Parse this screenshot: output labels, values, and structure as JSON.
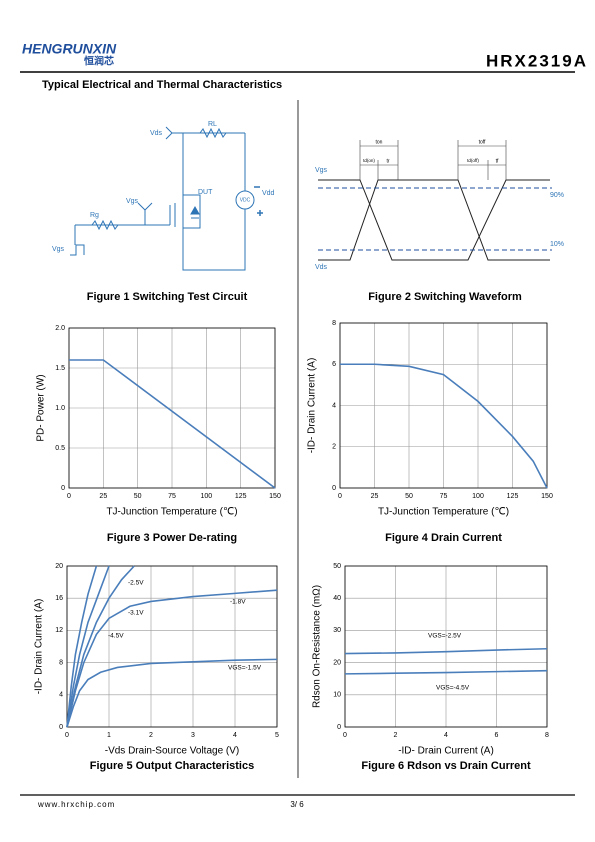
{
  "header": {
    "brand": "HENGRUNXIN",
    "brand_cn": "恒润芯",
    "part": "HRX2319A"
  },
  "section_title": "Typical Electrical and Thermal Characteristics",
  "figure1": {
    "title": "Figure 1 Switching Test Circuit",
    "labels": [
      "Vds",
      "RL",
      "Vdd",
      "DUT",
      "VDC",
      "Vgs",
      "Rg",
      "Vgs"
    ]
  },
  "figure2": {
    "title": "Figure 2 Switching Waveform",
    "labels": [
      "Vgs",
      "Vds",
      "90%",
      "10%",
      "ton",
      "td(on)",
      "tr",
      "toff",
      "td(off)",
      "tf"
    ]
  },
  "chart_data": [
    {
      "type": "line",
      "title": "Figure 3 Power De-rating",
      "x_label": "TJ-Junction Temperature (℃)",
      "y_label": "PD- Power (W)",
      "xlim": [
        0,
        150
      ],
      "xticks": [
        0,
        25,
        50,
        75,
        100,
        125,
        150
      ],
      "ylim": [
        0,
        2
      ],
      "yticks": [
        0,
        0.5,
        {
          "value": 1,
          "label": "1.0"
        },
        1.5,
        {
          "value": 2,
          "label": "2.0"
        }
      ],
      "grid": true,
      "series": [
        {
          "color": "#4a7ebb",
          "x": [
            0,
            25,
            150
          ],
          "values": [
            1.6,
            1.6,
            0
          ]
        }
      ]
    },
    {
      "type": "line",
      "title": "Figure 4 Drain Current",
      "x_label": "TJ-Junction Temperature (℃)",
      "y_label": "-ID- Drain Current (A)",
      "xlim": [
        0,
        150
      ],
      "xticks": [
        0,
        25,
        50,
        75,
        100,
        125,
        150
      ],
      "ylim": [
        0,
        8
      ],
      "yticks": [
        0,
        2,
        4,
        6,
        8
      ],
      "grid": true,
      "series": [
        {
          "color": "#4a7ebb",
          "x": [
            0,
            25,
            50,
            75,
            100,
            125,
            140,
            150
          ],
          "values": [
            6,
            6,
            5.9,
            5.5,
            4.2,
            2.5,
            1.3,
            0
          ]
        }
      ]
    },
    {
      "type": "line",
      "title": "Figure 5 Output Characteristics",
      "x_label": "-Vds Drain-Source Voltage (V)",
      "y_label": "-ID- Drain Current (A)",
      "xlim": [
        0,
        5
      ],
      "xticks": [
        0,
        1,
        2,
        3,
        4,
        5
      ],
      "ylim": [
        0,
        20
      ],
      "yticks": [
        0,
        4,
        8,
        12,
        16,
        20
      ],
      "grid": true,
      "series": [
        {
          "name": "-2.5V",
          "color": "#4a7ebb",
          "x": [
            0,
            0.2,
            0.4,
            0.7,
            1.0,
            1.3,
            1.6
          ],
          "values": [
            0,
            5,
            9,
            13,
            16,
            18.3,
            20
          ]
        },
        {
          "name": "-3.1V",
          "color": "#4a7ebb",
          "x": [
            0,
            0.15,
            0.3,
            0.5,
            0.75,
            1.0
          ],
          "values": [
            0,
            5,
            9,
            13,
            16.5,
            20
          ]
        },
        {
          "name": "-4.5V",
          "color": "#4a7ebb",
          "x": [
            0,
            0.1,
            0.2,
            0.35,
            0.5,
            0.7
          ],
          "values": [
            0,
            5,
            9,
            13,
            16.5,
            20
          ]
        },
        {
          "name": "-1.8V",
          "color": "#4a7ebb",
          "x": [
            0,
            0.2,
            0.4,
            0.7,
            1,
            1.5,
            2,
            3,
            4,
            5
          ],
          "values": [
            0,
            4.5,
            8,
            11.5,
            13.5,
            15,
            15.6,
            16.2,
            16.6,
            17
          ]
        },
        {
          "name": "VGS=-1.5V",
          "color": "#4a7ebb",
          "x": [
            0,
            0.15,
            0.3,
            0.5,
            0.8,
            1.2,
            2,
            3,
            4,
            5
          ],
          "values": [
            0,
            2.5,
            4.5,
            5.9,
            6.8,
            7.4,
            7.9,
            8.1,
            8.3,
            8.4
          ]
        }
      ]
    },
    {
      "type": "line",
      "title": "Figure 6 Rdson vs Drain Current",
      "x_label": "-ID- Drain Current (A)",
      "y_label": "Rdson On-Resistance (mΩ)",
      "xlim": [
        0,
        8
      ],
      "xticks": [
        0,
        2,
        4,
        6,
        8
      ],
      "ylim": [
        0,
        50
      ],
      "yticks": [
        0,
        10,
        20,
        30,
        40,
        50
      ],
      "grid": true,
      "series": [
        {
          "name": "VGS=-2.5V",
          "color": "#4a7ebb",
          "x": [
            0,
            2,
            4,
            6,
            8
          ],
          "values": [
            22.8,
            23,
            23.4,
            23.9,
            24.3
          ]
        },
        {
          "name": "VGS=-4.5V",
          "color": "#4a7ebb",
          "x": [
            0,
            2,
            4,
            6,
            8
          ],
          "values": [
            16.5,
            16.7,
            16.9,
            17.2,
            17.5
          ]
        }
      ]
    }
  ],
  "footer": {
    "url": "www.hrxchip.com",
    "page": "3/ 6"
  }
}
